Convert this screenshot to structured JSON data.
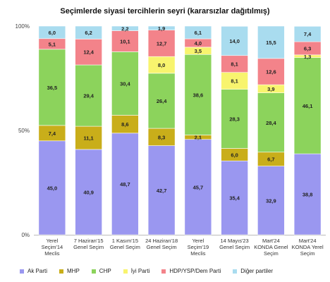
{
  "chart_data": {
    "type": "bar",
    "stacked": true,
    "title": "Seçimlerde siyasi tercihlerin seyri (kararsızlar dağıtılmış)",
    "xlabel": "",
    "ylabel": "",
    "ylim": [
      0,
      100
    ],
    "yticks": [
      "0%",
      "50%",
      "100%"
    ],
    "categories": [
      [
        "Yerel",
        "Seçim'14",
        "Meclis"
      ],
      [
        "7 Haziran'15",
        "Genel Seçim"
      ],
      [
        "1 Kasım'15",
        "Genel Seçim"
      ],
      [
        "24 Haziran'18",
        "Genel Seçim"
      ],
      [
        "Yerel",
        "Seçim'19",
        "Meclis"
      ],
      [
        "14 Mayıs'23",
        "Genel Seçim"
      ],
      [
        "Mart'24",
        "KONDA Genel",
        "Seçim"
      ],
      [
        "Mart'24",
        "KONDA Yerel",
        "Seçim"
      ]
    ],
    "series": [
      {
        "name": "Ak Parti",
        "color": "#9A97F0",
        "values": [
          45.0,
          40.9,
          48.7,
          42.7,
          45.7,
          35.4,
          32.9,
          38.8
        ],
        "labels": [
          "45,0",
          "40,9",
          "48,7",
          "42,7",
          "45,7",
          "35,4",
          "32,9",
          "38,8"
        ]
      },
      {
        "name": "MHP",
        "color": "#C9AE1A",
        "values": [
          7.4,
          11.1,
          8.6,
          8.3,
          2.1,
          6.0,
          6.7,
          0
        ],
        "labels": [
          "7,4",
          "11,1",
          "8,6",
          "8,3",
          "2,1",
          "6,0",
          "6,7",
          ""
        ]
      },
      {
        "name": "CHP",
        "color": "#8CD35C",
        "values": [
          36.5,
          29.4,
          30.4,
          26.4,
          38.6,
          28.3,
          28.4,
          46.1
        ],
        "labels": [
          "36,5",
          "29,4",
          "30,4",
          "26,4",
          "38,6",
          "28,3",
          "28,4",
          "46,1"
        ]
      },
      {
        "name": "İyi Parti",
        "color": "#F8F46E",
        "values": [
          0,
          0,
          0,
          8.0,
          3.5,
          8.1,
          3.9,
          1.3
        ],
        "labels": [
          "",
          "",
          "",
          "8,0",
          "3,5",
          "8,1",
          "3,9",
          "1,3"
        ]
      },
      {
        "name": "HDP/YSP/Dem Parti",
        "color": "#F3838A",
        "values": [
          5.1,
          12.4,
          10.1,
          12.7,
          4.0,
          8.1,
          12.6,
          6.3
        ],
        "labels": [
          "5,1",
          "12,4",
          "10,1",
          "12,7",
          "4,0",
          "8,1",
          "12,6",
          "6,3"
        ]
      },
      {
        "name": "Diğer partiler",
        "color": "#A9DCEF",
        "values": [
          6.0,
          6.2,
          2.2,
          1.9,
          6.1,
          14.0,
          15.5,
          7.4
        ],
        "labels": [
          "6,0",
          "6,2",
          "2,2",
          "1,9",
          "6,1",
          "14,0",
          "15,5",
          "7,4"
        ]
      }
    ],
    "grid": false,
    "legend_position": "bottom"
  }
}
